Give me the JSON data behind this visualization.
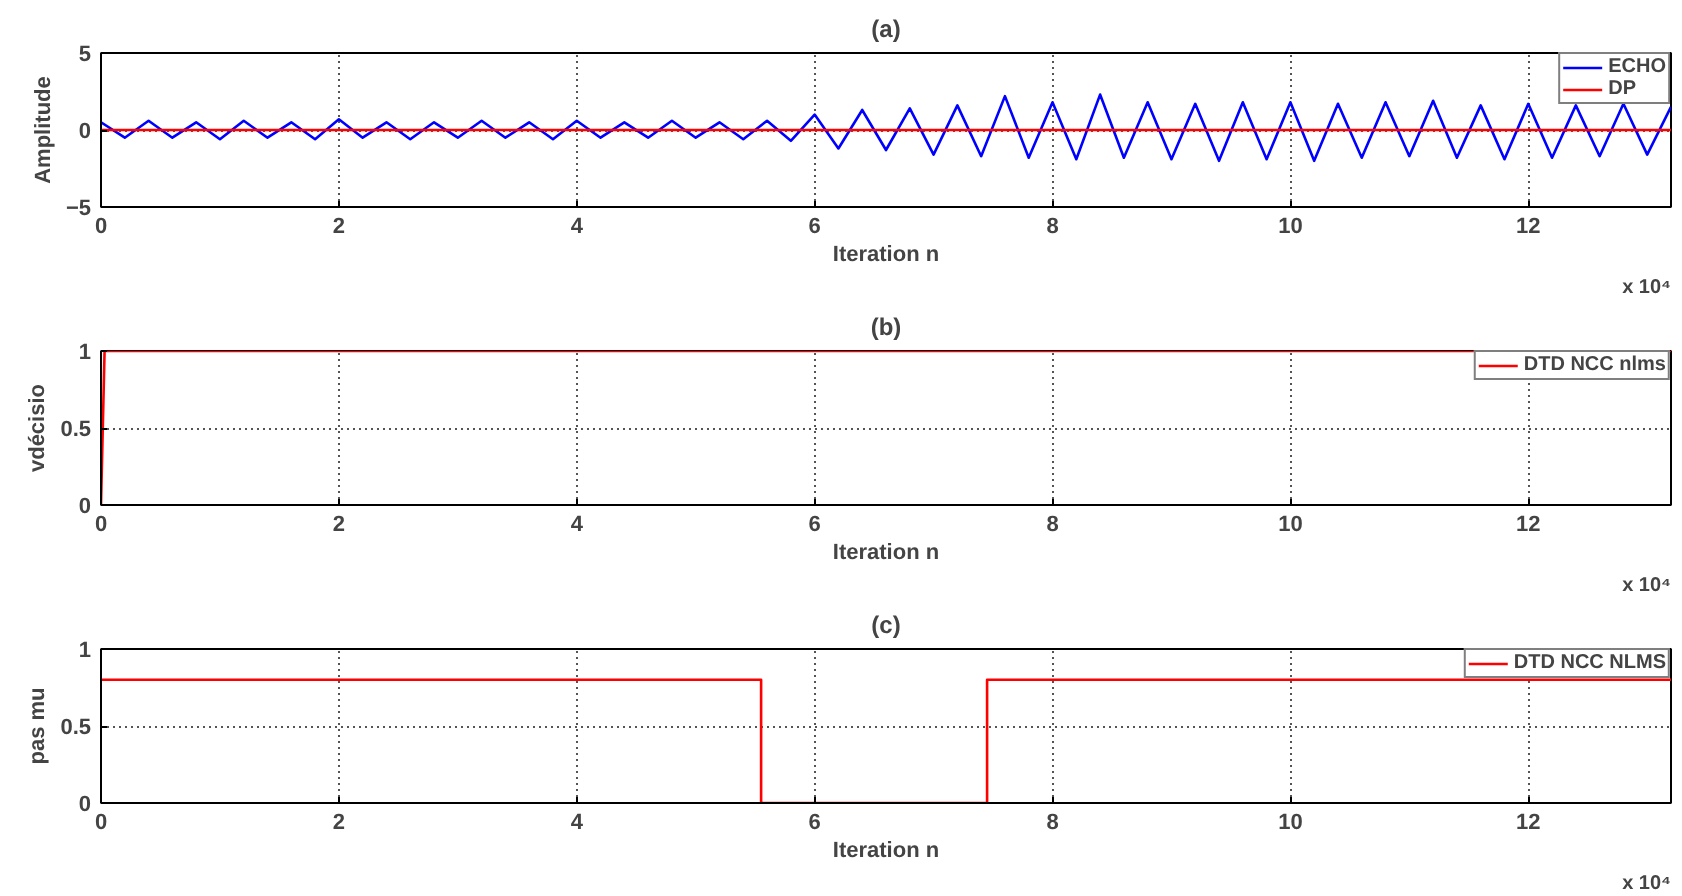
{
  "chart_data": [
    {
      "type": "line",
      "title": "(a)",
      "xlabel": "Iteration n",
      "ylabel": "Amplitude",
      "xlim": [
        0,
        13.2
      ],
      "xticks": [
        0,
        2,
        4,
        6,
        8,
        10,
        12
      ],
      "ylim": [
        -5,
        5
      ],
      "yticks": [
        -5,
        0,
        5
      ],
      "grid": true,
      "legend": "top right",
      "annotations": [
        "x 10⁴"
      ],
      "series": [
        {
          "name": "ECHO",
          "color": "#0000ff",
          "x": [
            0,
            0.2,
            0.4,
            0.6,
            0.8,
            1.0,
            1.2,
            1.4,
            1.6,
            1.8,
            2.0,
            2.2,
            2.4,
            2.6,
            2.8,
            3.0,
            3.2,
            3.4,
            3.6,
            3.8,
            4.0,
            4.2,
            4.4,
            4.6,
            4.8,
            5.0,
            5.2,
            5.4,
            5.6,
            5.8,
            6.0,
            6.2,
            6.4,
            6.6,
            6.8,
            7.0,
            7.2,
            7.4,
            7.6,
            7.8,
            8.0,
            8.2,
            8.4,
            8.6,
            8.8,
            9.0,
            9.2,
            9.4,
            9.6,
            9.8,
            10.0,
            10.2,
            10.4,
            10.6,
            10.8,
            11.0,
            11.2,
            11.4,
            11.6,
            11.8,
            12.0,
            12.2,
            12.4,
            12.6,
            12.8,
            13.0,
            13.2
          ],
          "values": [
            0.5,
            -0.5,
            0.6,
            -0.5,
            0.5,
            -0.6,
            0.6,
            -0.5,
            0.5,
            -0.6,
            0.7,
            -0.5,
            0.5,
            -0.6,
            0.5,
            -0.5,
            0.6,
            -0.5,
            0.5,
            -0.6,
            0.6,
            -0.5,
            0.5,
            -0.5,
            0.6,
            -0.5,
            0.5,
            -0.6,
            0.6,
            -0.7,
            1.0,
            -1.2,
            1.3,
            -1.3,
            1.4,
            -1.6,
            1.6,
            -1.7,
            2.2,
            -1.8,
            1.8,
            -1.9,
            2.3,
            -1.8,
            1.8,
            -1.9,
            1.7,
            -2.0,
            1.8,
            -1.9,
            1.8,
            -2.0,
            1.7,
            -1.8,
            1.8,
            -1.7,
            1.9,
            -1.8,
            1.6,
            -1.9,
            1.7,
            -1.8,
            1.6,
            -1.7,
            1.7,
            -1.6,
            1.5
          ]
        },
        {
          "name": "DP",
          "color": "#ff0000",
          "x": [
            0,
            13.2
          ],
          "values": [
            0,
            0
          ]
        }
      ]
    },
    {
      "type": "line",
      "title": "(b)",
      "xlabel": "Iteration n",
      "ylabel": "vdécisio",
      "xlim": [
        0,
        13.2
      ],
      "xticks": [
        0,
        2,
        4,
        6,
        8,
        10,
        12
      ],
      "ylim": [
        0,
        1
      ],
      "yticks": [
        0,
        0.5,
        1
      ],
      "grid": true,
      "legend": "top right",
      "annotations": [
        "x 10⁴"
      ],
      "series": [
        {
          "name": "DTD NCC nlms",
          "color": "#ff0000",
          "x": [
            0,
            0.03,
            13.2
          ],
          "values": [
            0,
            1,
            1
          ]
        }
      ]
    },
    {
      "type": "line",
      "title": "(c)",
      "xlabel": "Iteration n",
      "ylabel": "pas mu",
      "xlim": [
        0,
        13.2
      ],
      "xticks": [
        0,
        2,
        4,
        6,
        8,
        10,
        12
      ],
      "ylim": [
        0,
        1
      ],
      "yticks": [
        0,
        0.5,
        1
      ],
      "grid": true,
      "legend": "top right",
      "annotations": [
        "x 10⁴"
      ],
      "series": [
        {
          "name": "DTD NCC NLMS",
          "color": "#ff0000",
          "x": [
            0,
            5.55,
            5.55,
            7.45,
            7.45,
            13.2
          ],
          "values": [
            0.8,
            0.8,
            0,
            0,
            0.8,
            0.8
          ]
        }
      ]
    }
  ]
}
